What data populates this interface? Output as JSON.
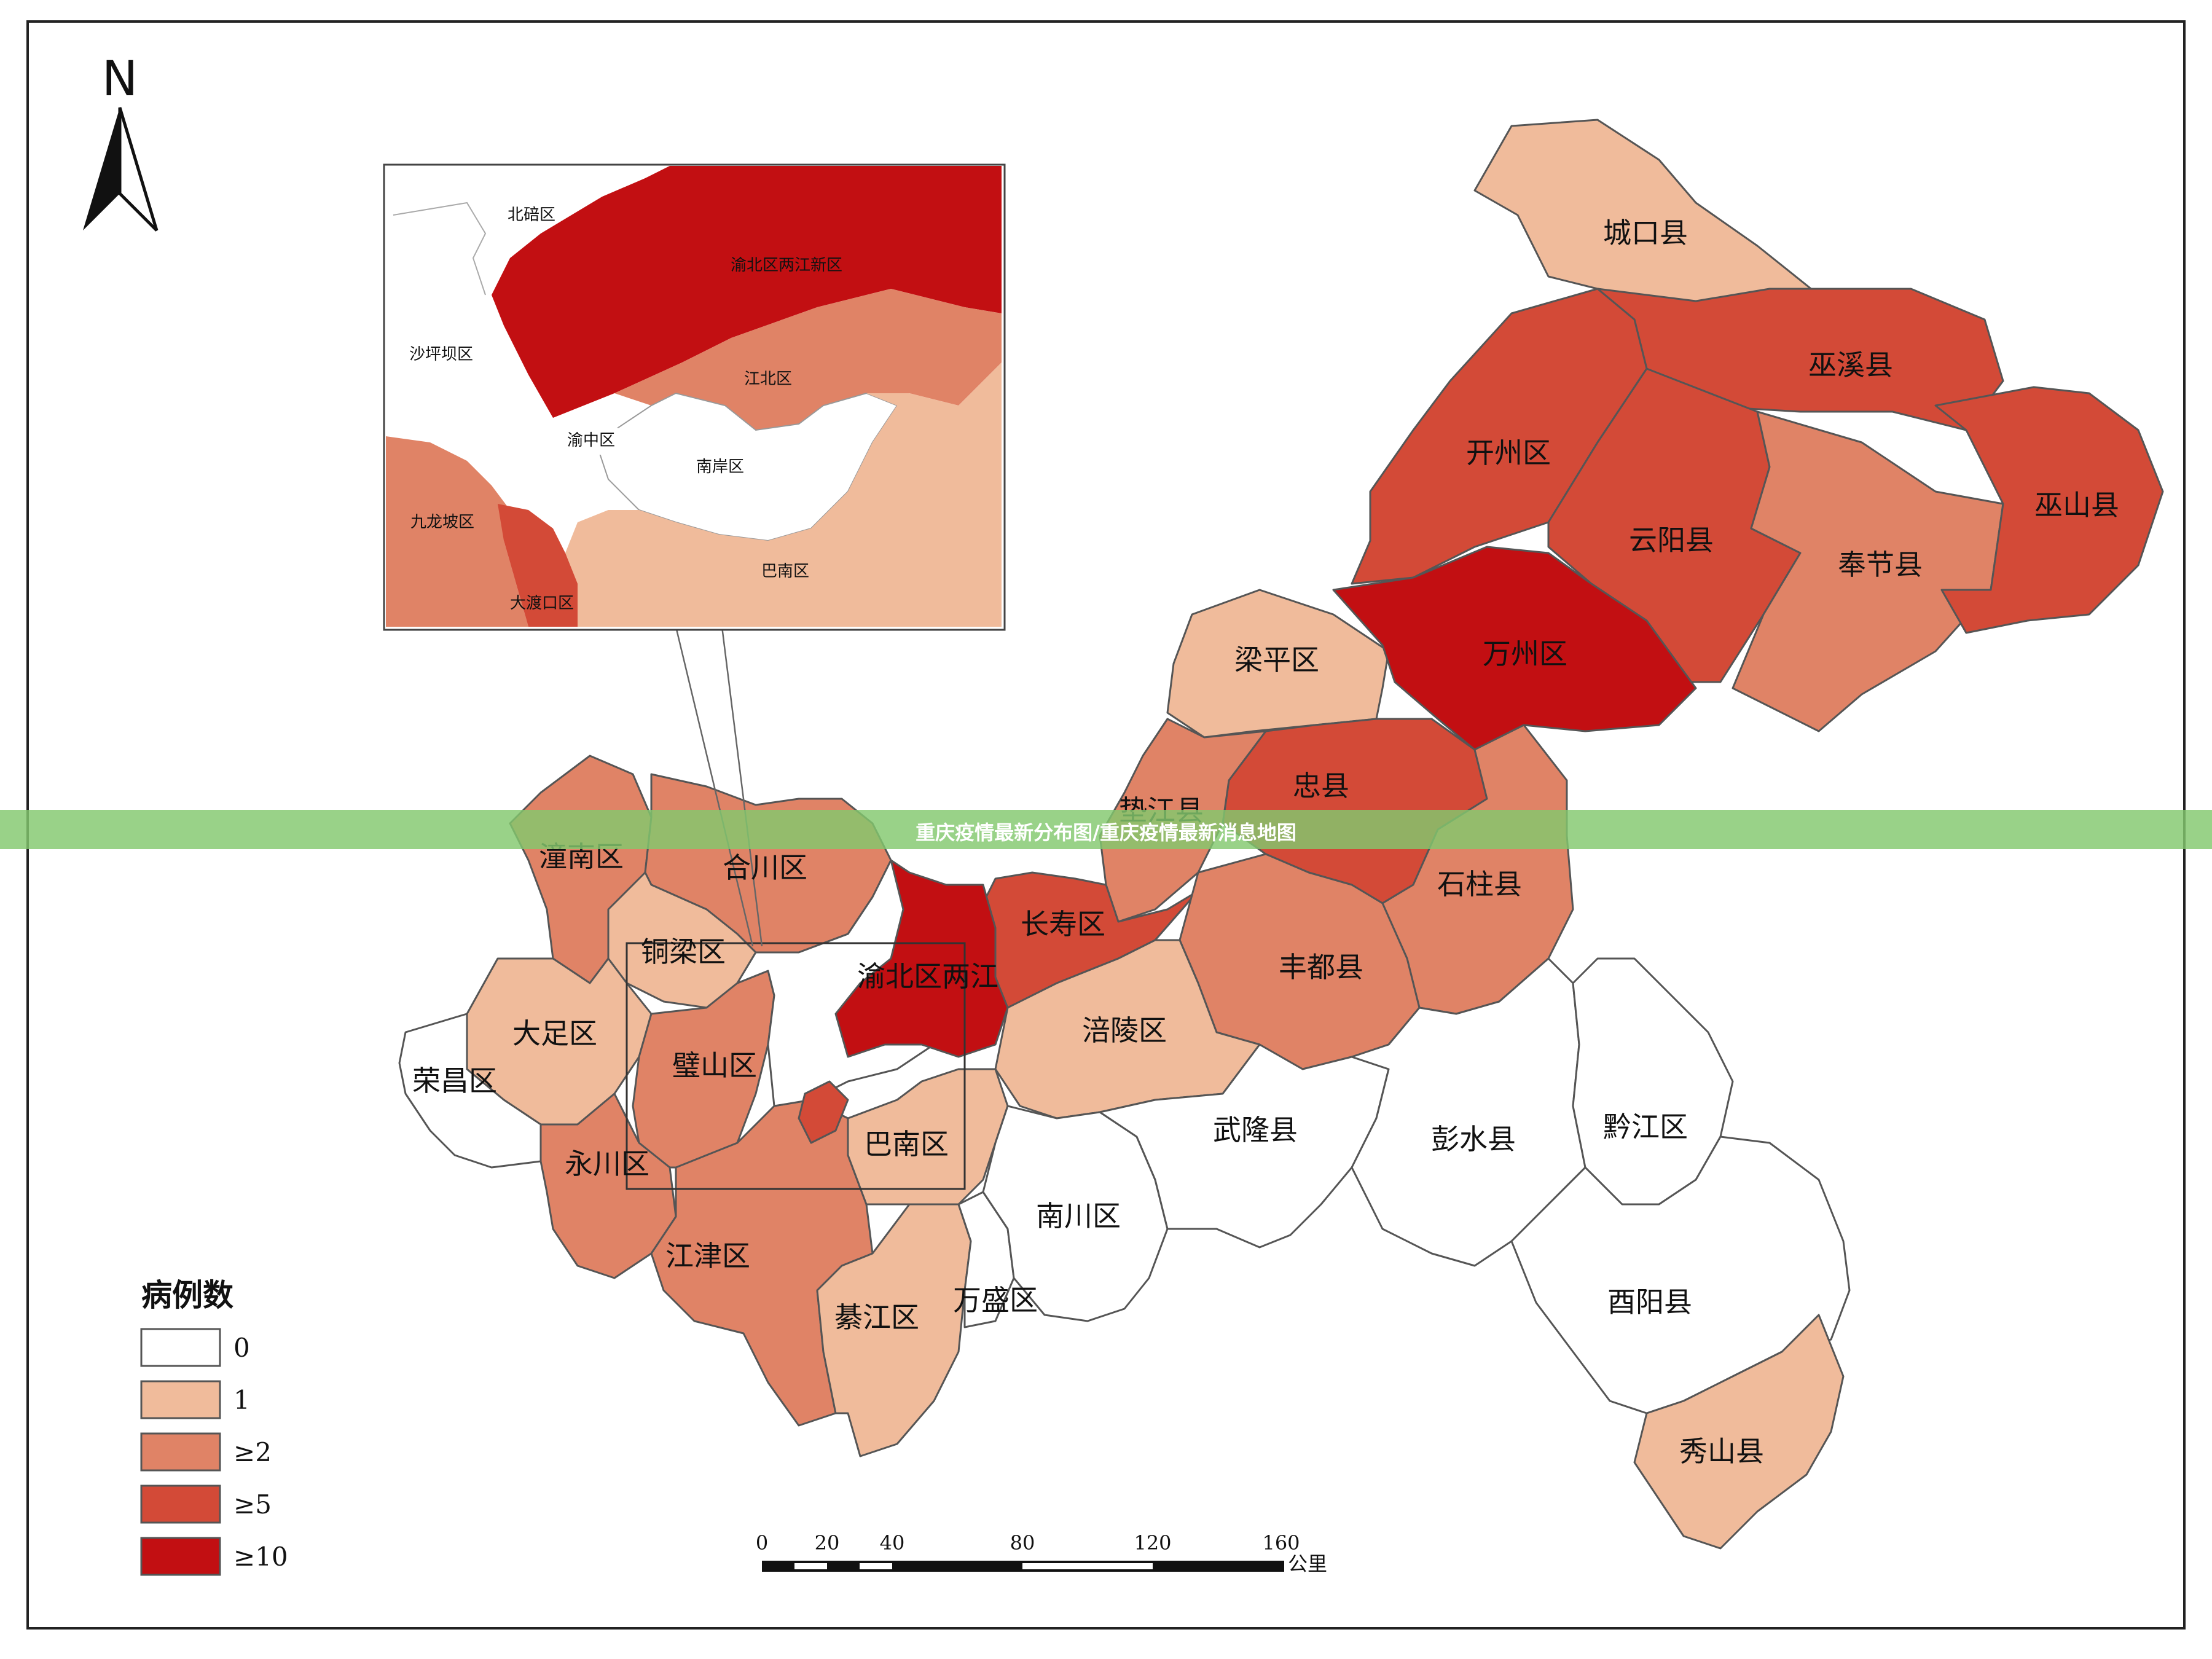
{
  "banner": {
    "text": "重庆疫情最新分布图/重庆疫情最新消息地图"
  },
  "north": {
    "label": "N"
  },
  "legend": {
    "title": "病例数",
    "items": [
      {
        "label": "0",
        "color": "#ffffff"
      },
      {
        "label": "1",
        "color": "#f0bb9b"
      },
      {
        "label": "≥2",
        "color": "#e08366"
      },
      {
        "label": "≥5",
        "color": "#d34a37"
      },
      {
        "label": "≥10",
        "color": "#c20f12"
      }
    ]
  },
  "scale_bar": {
    "ticks": [
      "0",
      "20",
      "40",
      "80",
      "120",
      "160"
    ],
    "unit": "公里"
  },
  "districts": {
    "chengkou": "城口县",
    "wuxi": "巫溪县",
    "kaizhou": "开州区",
    "yunyang": "云阳县",
    "wushan": "巫山县",
    "fengjie": "奉节县",
    "liangping": "梁平区",
    "wanzhou": "万州区",
    "zhongxian": "忠县",
    "dianjiang": "垫江县",
    "shizhu": "石柱县",
    "changshou": "长寿区",
    "fengdu": "丰都县",
    "fuling": "涪陵区",
    "tongnan": "潼南区",
    "hechuan": "合川区",
    "tongliang": "铜梁区",
    "dazu": "大足区",
    "bishan": "璧山区",
    "rongchang": "荣昌区",
    "yongchuan": "永川区",
    "jiangjin": "江津区",
    "banan": "巴南区",
    "yubei": "渝北区两江",
    "qijiang": "綦江区",
    "wansheng": "万盛区",
    "nanchuan": "南川区",
    "wulong": "武隆县",
    "pengshui": "彭水县",
    "qianjiang": "黔江区",
    "youyang": "酉阳县",
    "xiushan": "秀山县"
  },
  "inset": {
    "beibei": "北碚区",
    "yubei": "渝北区两江新区",
    "shapingba": "沙坪坝区",
    "jiangbei": "江北区",
    "yuzhong": "渝中区",
    "nanan": "南岸区",
    "jiulongpo": "九龙坡区",
    "banan": "巴南区",
    "dadukou": "大渡口区"
  }
}
